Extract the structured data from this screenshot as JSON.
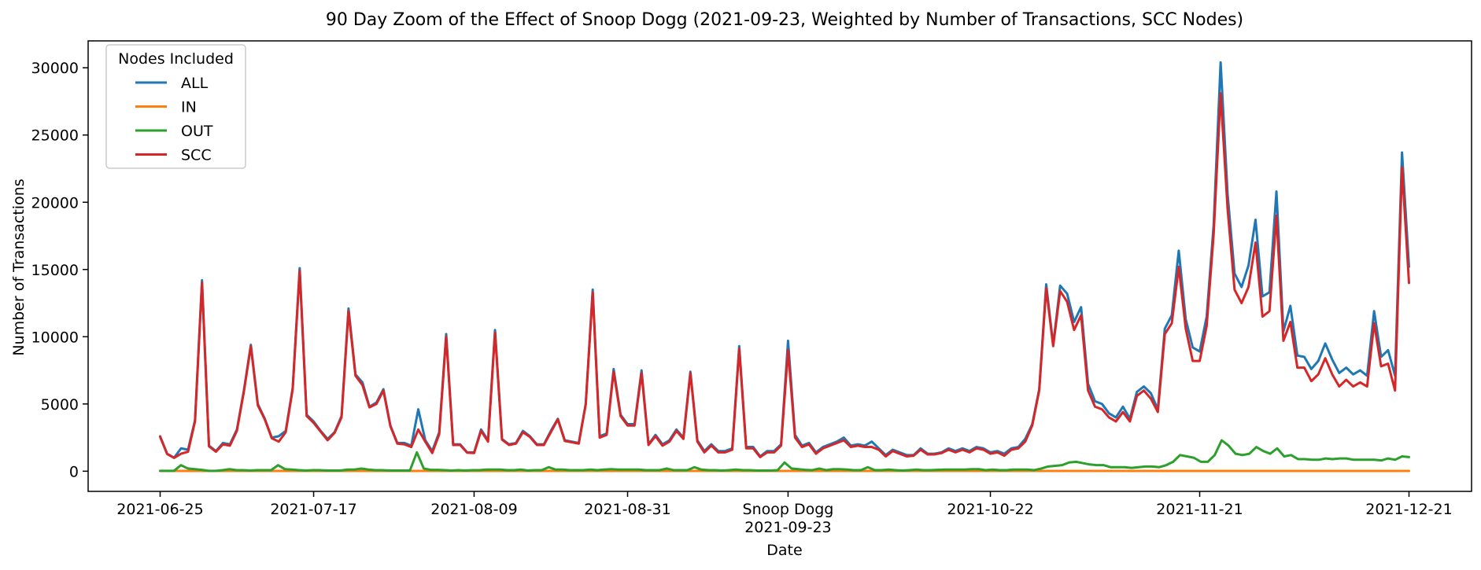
{
  "chart_data": {
    "type": "line",
    "title": "90 Day Zoom of the Effect of Snoop Dogg (2021-09-23, Weighted by Number of Transactions, SCC Nodes)",
    "xlabel": "Date",
    "ylabel": "Number of Transactions",
    "x_start": "2021-06-25",
    "x_end": "2021-12-21",
    "ylim": [
      -1500,
      32000
    ],
    "yticks": [
      0,
      5000,
      10000,
      15000,
      20000,
      25000,
      30000
    ],
    "ytick_labels": [
      "0",
      "5000",
      "10000",
      "15000",
      "20000",
      "25000",
      "30000"
    ],
    "xticks": [
      {
        "date": "2021-06-25",
        "label": "2021-06-25"
      },
      {
        "date": "2021-07-17",
        "label": "2021-07-17"
      },
      {
        "date": "2021-08-09",
        "label": "2021-08-09"
      },
      {
        "date": "2021-08-31",
        "label": "2021-08-31"
      },
      {
        "date": "2021-09-23",
        "label": "Snoop Dogg",
        "label2": "2021-09-23"
      },
      {
        "date": "2021-10-22",
        "label": "2021-10-22"
      },
      {
        "date": "2021-11-21",
        "label": "2021-11-21"
      },
      {
        "date": "2021-12-21",
        "label": "2021-12-21"
      }
    ],
    "legend": {
      "title": "Nodes Included",
      "placement": "upper-left"
    },
    "grid": false,
    "series": [
      {
        "name": "ALL",
        "color": "#1f77b4",
        "values": [
          2600,
          1300,
          1000,
          1700,
          1600,
          3800,
          14200,
          1900,
          1500,
          2100,
          2000,
          3100,
          6000,
          9400,
          5000,
          3900,
          2500,
          2600,
          3000,
          6200,
          15100,
          4200,
          3700,
          3000,
          2400,
          2900,
          4100,
          12100,
          7200,
          6600,
          4800,
          5100,
          6100,
          3400,
          2100,
          2100,
          1900,
          4600,
          2300,
          1500,
          2900,
          10200,
          2000,
          2000,
          1400,
          1400,
          3100,
          2300,
          10500,
          2400,
          2000,
          2100,
          3000,
          2600,
          2000,
          2000,
          3000,
          3900,
          2300,
          2200,
          2100,
          5000,
          13500,
          2600,
          2800,
          7600,
          4200,
          3500,
          3500,
          7500,
          2000,
          2700,
          2000,
          2300,
          3100,
          2500,
          7400,
          2300,
          1500,
          2000,
          1500,
          1500,
          1700,
          9300,
          1800,
          1800,
          1100,
          1500,
          1500,
          2000,
          9700,
          2700,
          1900,
          2100,
          1400,
          1800,
          2000,
          2200,
          2500,
          1900,
          2000,
          1900,
          2200,
          1700,
          1200,
          1600,
          1400,
          1200,
          1200,
          1700,
          1300,
          1300,
          1400,
          1700,
          1500,
          1700,
          1500,
          1800,
          1700,
          1400,
          1500,
          1300,
          1700,
          1800,
          2400,
          3500,
          6100,
          13900,
          9400,
          13800,
          13200,
          11100,
          12200,
          6500,
          5200,
          5000,
          4300,
          4000,
          4800,
          3900,
          5900,
          6300,
          5800,
          4600,
          10600,
          11600,
          16400,
          11300,
          9200,
          8900,
          11500,
          18300,
          30400,
          20600,
          14700,
          13700,
          15300,
          18700,
          13000,
          13300,
          20800,
          10400,
          12300,
          8600,
          8500,
          7600,
          8200,
          9500,
          8300,
          7300,
          7700,
          7200,
          7500,
          7100,
          11900,
          8500,
          9000,
          7100,
          23700,
          15200
        ]
      },
      {
        "name": "IN",
        "color": "#ff7f0e",
        "values": [
          20,
          20,
          20,
          20,
          20,
          20,
          20,
          20,
          20,
          20,
          20,
          20,
          20,
          20,
          20,
          20,
          20,
          20,
          20,
          20,
          20,
          20,
          20,
          20,
          20,
          20,
          20,
          20,
          20,
          20,
          20,
          20,
          20,
          20,
          20,
          20,
          20,
          20,
          20,
          20,
          20,
          20,
          20,
          20,
          20,
          20,
          20,
          20,
          20,
          20,
          20,
          20,
          20,
          20,
          20,
          20,
          20,
          20,
          20,
          20,
          20,
          20,
          20,
          20,
          20,
          20,
          20,
          20,
          20,
          20,
          20,
          20,
          20,
          20,
          20,
          20,
          20,
          20,
          20,
          20,
          20,
          20,
          20,
          20,
          20,
          20,
          20,
          20,
          20,
          20,
          20,
          20,
          20,
          20,
          20,
          20,
          20,
          20,
          20,
          20,
          20,
          20,
          20,
          20,
          20,
          20,
          20,
          20,
          20,
          20,
          20,
          20,
          20,
          20,
          20,
          20,
          20,
          20,
          20,
          20,
          20,
          20,
          20,
          20,
          20,
          20,
          20,
          20,
          20,
          20,
          20,
          20,
          20,
          20,
          20,
          20,
          20,
          20,
          20,
          20,
          20,
          20,
          20,
          20,
          20,
          20,
          20,
          20,
          20,
          20,
          20,
          20,
          20,
          20,
          20,
          20,
          20,
          20,
          20,
          20,
          20,
          20,
          20,
          20,
          20,
          20,
          20,
          20,
          20,
          20,
          20,
          20,
          20,
          20,
          20,
          20,
          20,
          20,
          20,
          20,
          20,
          20
        ]
      },
      {
        "name": "OUT",
        "color": "#2ca02c",
        "values": [
          30,
          30,
          30,
          450,
          200,
          150,
          100,
          30,
          30,
          80,
          150,
          80,
          80,
          50,
          80,
          80,
          80,
          450,
          150,
          120,
          80,
          50,
          80,
          80,
          50,
          50,
          50,
          120,
          120,
          200,
          120,
          80,
          80,
          50,
          50,
          50,
          50,
          1400,
          200,
          100,
          100,
          80,
          50,
          80,
          50,
          80,
          80,
          120,
          120,
          120,
          80,
          80,
          120,
          50,
          80,
          80,
          300,
          120,
          120,
          80,
          80,
          80,
          120,
          80,
          120,
          150,
          120,
          120,
          120,
          120,
          80,
          80,
          80,
          200,
          80,
          80,
          80,
          300,
          120,
          80,
          80,
          50,
          80,
          120,
          80,
          80,
          50,
          50,
          50,
          80,
          650,
          200,
          150,
          100,
          80,
          200,
          80,
          150,
          150,
          120,
          80,
          80,
          300,
          80,
          80,
          120,
          80,
          50,
          80,
          120,
          80,
          80,
          100,
          120,
          120,
          120,
          120,
          150,
          150,
          80,
          120,
          80,
          80,
          120,
          120,
          120,
          80,
          200,
          350,
          400,
          450,
          650,
          700,
          600,
          500,
          450,
          450,
          300,
          300,
          300,
          250,
          300,
          350,
          350,
          300,
          450,
          700,
          1200,
          1100,
          1000,
          700,
          700,
          1200,
          2300,
          1900,
          1300,
          1200,
          1300,
          1800,
          1500,
          1300,
          1700,
          1100,
          1200,
          900,
          900,
          850,
          850,
          950,
          900,
          950,
          950,
          850,
          850,
          850,
          850,
          800,
          950,
          850,
          1100,
          1050
        ]
      },
      {
        "name": "SCC",
        "color": "#d62728",
        "values": [
          2550,
          1280,
          990,
          1300,
          1450,
          3700,
          14000,
          1850,
          1450,
          2000,
          1900,
          3000,
          5900,
          9300,
          4900,
          3850,
          2450,
          2200,
          2900,
          6100,
          14900,
          4100,
          3600,
          2950,
          2300,
          2850,
          4000,
          11900,
          7100,
          6400,
          4750,
          5000,
          6000,
          3350,
          2050,
          2000,
          1800,
          3100,
          2200,
          1350,
          2750,
          10000,
          1950,
          1950,
          1380,
          1350,
          3000,
          2200,
          10300,
          2350,
          1950,
          2050,
          2900,
          2550,
          1950,
          1950,
          2900,
          3850,
          2250,
          2150,
          2050,
          4950,
          13300,
          2500,
          2700,
          7400,
          4100,
          3400,
          3400,
          7300,
          1950,
          2600,
          1900,
          2200,
          3000,
          2400,
          7300,
          2200,
          1400,
          1900,
          1400,
          1400,
          1600,
          9100,
          1700,
          1700,
          1050,
          1400,
          1400,
          1900,
          9000,
          2500,
          1800,
          2000,
          1300,
          1700,
          1900,
          2100,
          2300,
          1800,
          1900,
          1800,
          1800,
          1600,
          1100,
          1500,
          1300,
          1100,
          1150,
          1600,
          1250,
          1250,
          1350,
          1600,
          1400,
          1600,
          1400,
          1700,
          1600,
          1300,
          1400,
          1150,
          1600,
          1700,
          2200,
          3400,
          6000,
          13600,
          9300,
          13400,
          12600,
          10500,
          11600,
          6000,
          4800,
          4600,
          4000,
          3700,
          4400,
          3700,
          5600,
          6000,
          5400,
          4400,
          10200,
          11000,
          15200,
          10600,
          8200,
          8200,
          10800,
          17600,
          28100,
          19500,
          13500,
          12500,
          13700,
          17000,
          11500,
          11900,
          19000,
          9700,
          11100,
          7700,
          7700,
          6700,
          7200,
          8400,
          7200,
          6300,
          6800,
          6300,
          6600,
          6300,
          11000,
          7800,
          8000,
          6000,
          22600,
          14000
        ]
      }
    ]
  }
}
